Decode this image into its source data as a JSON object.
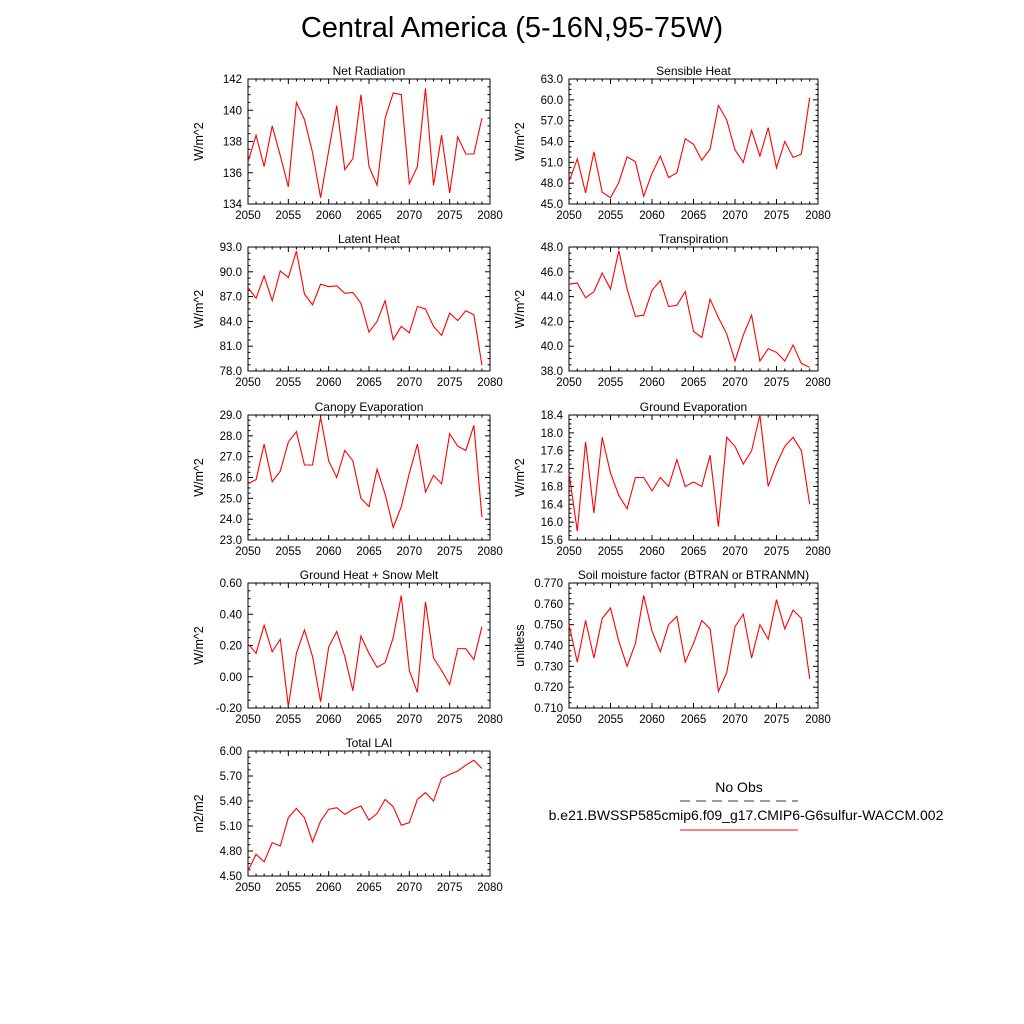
{
  "title": "Central America (5-16N,95-75W)",
  "chart_data": [
    {
      "type": "line",
      "title": "Net Radiation",
      "ylabel": "W/m^2",
      "ylim": [
        134,
        142
      ],
      "yticks": [
        "134",
        "136",
        "138",
        "140",
        "142"
      ],
      "xlim": [
        2050,
        2080
      ],
      "xticks": [
        "2050",
        "2055",
        "2060",
        "2065",
        "2070",
        "2075",
        "2080"
      ],
      "x": [
        2050,
        2051,
        2052,
        2053,
        2054,
        2055,
        2056,
        2057,
        2058,
        2059,
        2060,
        2061,
        2062,
        2063,
        2064,
        2065,
        2066,
        2067,
        2068,
        2069,
        2070,
        2071,
        2072,
        2073,
        2074,
        2075,
        2076,
        2077,
        2078,
        2079
      ],
      "series": [
        {
          "values": [
            136.7,
            138.4,
            136.4,
            139.0,
            137.1,
            135.1,
            140.5,
            139.4,
            137.3,
            134.4,
            137.4,
            140.3,
            136.2,
            136.9,
            141.0,
            136.4,
            135.2,
            139.5,
            141.1,
            141.0,
            135.3,
            136.4,
            141.4,
            135.2,
            138.4,
            134.7,
            138.3,
            137.2,
            137.2,
            139.5
          ]
        }
      ]
    },
    {
      "type": "line",
      "title": "Sensible Heat",
      "ylabel": "W/m^2",
      "ylim": [
        45.0,
        63.0
      ],
      "yticks": [
        "45.0",
        "48.0",
        "51.0",
        "54.0",
        "57.0",
        "60.0",
        "63.0"
      ],
      "xlim": [
        2050,
        2080
      ],
      "xticks": [
        "2050",
        "2055",
        "2060",
        "2065",
        "2070",
        "2075",
        "2080"
      ],
      "x": [
        2050,
        2051,
        2052,
        2053,
        2054,
        2055,
        2056,
        2057,
        2058,
        2059,
        2060,
        2061,
        2062,
        2063,
        2064,
        2065,
        2066,
        2067,
        2068,
        2069,
        2070,
        2071,
        2072,
        2073,
        2074,
        2075,
        2076,
        2077,
        2078,
        2079
      ],
      "series": [
        {
          "values": [
            48.2,
            51.5,
            46.6,
            52.5,
            46.7,
            45.9,
            48.1,
            51.8,
            51.1,
            46.1,
            49.4,
            51.9,
            48.8,
            49.5,
            54.4,
            53.6,
            51.3,
            52.9,
            59.2,
            57.1,
            52.8,
            51.0,
            55.6,
            51.9,
            56.0,
            50.2,
            54.0,
            51.7,
            52.2,
            60.3
          ]
        }
      ]
    },
    {
      "type": "line",
      "title": "Latent Heat",
      "ylabel": "W/m^2",
      "ylim": [
        78.0,
        93.0
      ],
      "yticks": [
        "78.0",
        "81.0",
        "84.0",
        "87.0",
        "90.0",
        "93.0"
      ],
      "xlim": [
        2050,
        2080
      ],
      "xticks": [
        "2050",
        "2055",
        "2060",
        "2065",
        "2070",
        "2075",
        "2080"
      ],
      "x": [
        2050,
        2051,
        2052,
        2053,
        2054,
        2055,
        2056,
        2057,
        2058,
        2059,
        2060,
        2061,
        2062,
        2063,
        2064,
        2065,
        2066,
        2067,
        2068,
        2069,
        2070,
        2071,
        2072,
        2073,
        2074,
        2075,
        2076,
        2077,
        2078,
        2079
      ],
      "series": [
        {
          "values": [
            88.1,
            86.8,
            89.5,
            86.5,
            90.1,
            89.3,
            92.5,
            87.3,
            86.0,
            88.5,
            88.2,
            88.3,
            87.4,
            87.5,
            86.2,
            82.7,
            84.0,
            86.5,
            81.8,
            83.4,
            82.6,
            85.8,
            85.5,
            83.4,
            82.3,
            85.0,
            84.1,
            85.3,
            84.8,
            78.7
          ]
        }
      ]
    },
    {
      "type": "line",
      "title": "Transpiration",
      "ylabel": "W/m^2",
      "ylim": [
        38.0,
        48.0
      ],
      "yticks": [
        "38.0",
        "40.0",
        "42.0",
        "44.0",
        "46.0",
        "48.0"
      ],
      "xlim": [
        2050,
        2080
      ],
      "xticks": [
        "2050",
        "2055",
        "2060",
        "2065",
        "2070",
        "2075",
        "2080"
      ],
      "x": [
        2050,
        2051,
        2052,
        2053,
        2054,
        2055,
        2056,
        2057,
        2058,
        2059,
        2060,
        2061,
        2062,
        2063,
        2064,
        2065,
        2066,
        2067,
        2068,
        2069,
        2070,
        2071,
        2072,
        2073,
        2074,
        2075,
        2076,
        2077,
        2078,
        2079
      ],
      "series": [
        {
          "values": [
            45.0,
            45.1,
            43.9,
            44.4,
            45.9,
            44.6,
            47.7,
            44.6,
            42.4,
            42.5,
            44.5,
            45.3,
            43.2,
            43.3,
            44.4,
            41.2,
            40.7,
            43.8,
            42.3,
            41.0,
            38.8,
            40.9,
            42.5,
            38.8,
            39.8,
            39.5,
            38.8,
            40.1,
            38.6,
            38.3
          ]
        }
      ]
    },
    {
      "type": "line",
      "title": "Canopy Evaporation",
      "ylabel": "W/m^2",
      "ylim": [
        23.0,
        29.0
      ],
      "yticks": [
        "23.0",
        "24.0",
        "25.0",
        "26.0",
        "27.0",
        "28.0",
        "29.0"
      ],
      "xlim": [
        2050,
        2080
      ],
      "xticks": [
        "2050",
        "2055",
        "2060",
        "2065",
        "2070",
        "2075",
        "2080"
      ],
      "x": [
        2050,
        2051,
        2052,
        2053,
        2054,
        2055,
        2056,
        2057,
        2058,
        2059,
        2060,
        2061,
        2062,
        2063,
        2064,
        2065,
        2066,
        2067,
        2068,
        2069,
        2070,
        2071,
        2072,
        2073,
        2074,
        2075,
        2076,
        2077,
        2078,
        2079
      ],
      "series": [
        {
          "values": [
            25.7,
            25.9,
            27.6,
            25.8,
            26.3,
            27.7,
            28.2,
            26.6,
            26.6,
            28.9,
            26.8,
            26.0,
            27.3,
            26.8,
            25.0,
            24.6,
            26.4,
            25.2,
            23.6,
            24.6,
            26.2,
            27.6,
            25.3,
            26.1,
            25.7,
            28.1,
            27.5,
            27.3,
            28.5,
            24.1
          ]
        }
      ]
    },
    {
      "type": "line",
      "title": "Ground Evaporation",
      "ylabel": "W/m^2",
      "ylim": [
        15.6,
        18.4
      ],
      "yticks": [
        "15.6",
        "16.0",
        "16.4",
        "16.8",
        "17.2",
        "17.6",
        "18.0",
        "18.4"
      ],
      "xlim": [
        2050,
        2080
      ],
      "xticks": [
        "2050",
        "2055",
        "2060",
        "2065",
        "2070",
        "2075",
        "2080"
      ],
      "x": [
        2050,
        2051,
        2052,
        2053,
        2054,
        2055,
        2056,
        2057,
        2058,
        2059,
        2060,
        2061,
        2062,
        2063,
        2064,
        2065,
        2066,
        2067,
        2068,
        2069,
        2070,
        2071,
        2072,
        2073,
        2074,
        2075,
        2076,
        2077,
        2078,
        2079
      ],
      "series": [
        {
          "values": [
            17.1,
            15.8,
            17.8,
            16.2,
            17.9,
            17.1,
            16.6,
            16.3,
            17.0,
            17.0,
            16.7,
            17.0,
            16.8,
            17.4,
            16.8,
            16.9,
            16.8,
            17.5,
            15.9,
            17.9,
            17.7,
            17.3,
            17.6,
            18.4,
            16.8,
            17.3,
            17.7,
            17.9,
            17.6,
            16.4
          ]
        }
      ]
    },
    {
      "type": "line",
      "title": "Ground Heat + Snow Melt",
      "ylabel": "W/m^2",
      "ylim": [
        -0.2,
        0.6
      ],
      "yticks": [
        "-0.20",
        "0.00",
        "0.20",
        "0.40",
        "0.60"
      ],
      "xlim": [
        2050,
        2080
      ],
      "xticks": [
        "2050",
        "2055",
        "2060",
        "2065",
        "2070",
        "2075",
        "2080"
      ],
      "x": [
        2050,
        2051,
        2052,
        2053,
        2054,
        2055,
        2056,
        2057,
        2058,
        2059,
        2060,
        2061,
        2062,
        2063,
        2064,
        2065,
        2066,
        2067,
        2068,
        2069,
        2070,
        2071,
        2072,
        2073,
        2074,
        2075,
        2076,
        2077,
        2078,
        2079
      ],
      "series": [
        {
          "values": [
            0.21,
            0.15,
            0.33,
            0.16,
            0.24,
            -0.19,
            0.15,
            0.3,
            0.13,
            -0.16,
            0.19,
            0.29,
            0.13,
            -0.09,
            0.26,
            0.15,
            0.06,
            0.09,
            0.25,
            0.52,
            0.04,
            -0.1,
            0.48,
            0.12,
            0.04,
            -0.05,
            0.18,
            0.18,
            0.11,
            0.32
          ]
        }
      ]
    },
    {
      "type": "line",
      "title": "Soil moisture factor (BTRAN or BTRANMN)",
      "ylabel": "unitless",
      "ylim": [
        0.71,
        0.77
      ],
      "yticks": [
        "0.710",
        "0.720",
        "0.730",
        "0.740",
        "0.750",
        "0.760",
        "0.770"
      ],
      "xlim": [
        2050,
        2080
      ],
      "xticks": [
        "2050",
        "2055",
        "2060",
        "2065",
        "2070",
        "2075",
        "2080"
      ],
      "x": [
        2050,
        2051,
        2052,
        2053,
        2054,
        2055,
        2056,
        2057,
        2058,
        2059,
        2060,
        2061,
        2062,
        2063,
        2064,
        2065,
        2066,
        2067,
        2068,
        2069,
        2070,
        2071,
        2072,
        2073,
        2074,
        2075,
        2076,
        2077,
        2078,
        2079
      ],
      "series": [
        {
          "values": [
            0.75,
            0.732,
            0.752,
            0.734,
            0.753,
            0.758,
            0.742,
            0.73,
            0.741,
            0.764,
            0.747,
            0.737,
            0.75,
            0.754,
            0.732,
            0.741,
            0.752,
            0.748,
            0.718,
            0.727,
            0.749,
            0.755,
            0.734,
            0.75,
            0.743,
            0.762,
            0.748,
            0.757,
            0.753,
            0.724
          ]
        }
      ]
    },
    {
      "type": "line",
      "title": "Total LAI",
      "ylabel": "m2/m2",
      "ylim": [
        4.5,
        6.0
      ],
      "yticks": [
        "4.50",
        "4.80",
        "5.10",
        "5.40",
        "5.70",
        "6.00"
      ],
      "xlim": [
        2050,
        2080
      ],
      "xticks": [
        "2050",
        "2055",
        "2060",
        "2065",
        "2070",
        "2075",
        "2080"
      ],
      "x": [
        2050,
        2051,
        2052,
        2053,
        2054,
        2055,
        2056,
        2057,
        2058,
        2059,
        2060,
        2061,
        2062,
        2063,
        2064,
        2065,
        2066,
        2067,
        2068,
        2069,
        2070,
        2071,
        2072,
        2073,
        2074,
        2075,
        2076,
        2077,
        2078,
        2079
      ],
      "series": [
        {
          "values": [
            4.56,
            4.76,
            4.67,
            4.9,
            4.86,
            5.2,
            5.31,
            5.2,
            4.91,
            5.16,
            5.3,
            5.32,
            5.24,
            5.3,
            5.34,
            5.17,
            5.25,
            5.42,
            5.33,
            5.11,
            5.14,
            5.42,
            5.5,
            5.4,
            5.67,
            5.72,
            5.76,
            5.83,
            5.89,
            5.79
          ]
        }
      ]
    }
  ],
  "legend": [
    {
      "label": "No Obs",
      "color": "#2b2b80",
      "style": "dashed"
    },
    {
      "label": "b.e21.BWSSP585cmip6.f09_g17.CMIP6-G6sulfur-WACCM.002",
      "color": "#ff0000",
      "style": "solid"
    }
  ],
  "line_color": "#ff0000"
}
